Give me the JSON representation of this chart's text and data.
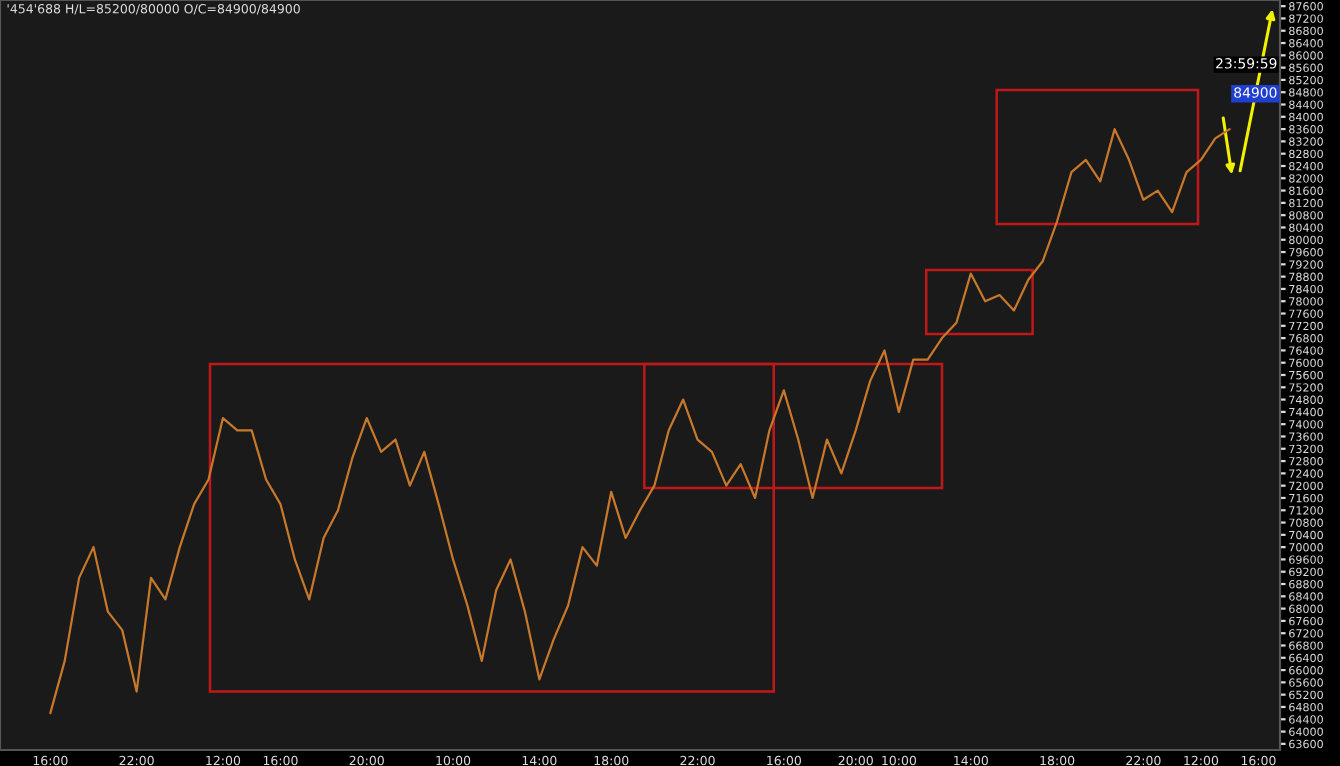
{
  "chart_data": {
    "type": "line",
    "title": "'454'688 H/L=85200/80000 O/C=84900/84900",
    "annotations": [
      "84900",
      "23:59:59"
    ],
    "categories": [
      "16:00",
      null,
      null,
      null,
      null,
      null,
      "22:00",
      null,
      null,
      null,
      null,
      null,
      "12:00",
      null,
      null,
      null,
      "16:00",
      null,
      null,
      null,
      null,
      null,
      "20:00",
      null,
      null,
      null,
      null,
      null,
      "10:00",
      null,
      null,
      null,
      null,
      null,
      "14:00",
      null,
      null,
      null,
      null,
      "18:00",
      null,
      null,
      null,
      null,
      null,
      "22:00",
      null,
      null,
      null,
      null,
      null,
      "16:00",
      null,
      null,
      null,
      null,
      "20:00",
      null,
      null,
      "10:00",
      null,
      null,
      null,
      null,
      "14:00",
      null,
      null,
      null,
      null,
      null,
      "18:00",
      null,
      null,
      null,
      null,
      null,
      "22:00",
      null,
      null,
      null,
      "12:00",
      null,
      null,
      null,
      "16:00",
      null
    ],
    "series": [
      {
        "color": "#c8782a",
        "values": [
          64600,
          66300,
          69000,
          70000,
          67900,
          67300,
          65300,
          69000,
          68300,
          70000,
          71400,
          72200,
          74200,
          73800,
          73800,
          72200,
          71400,
          69600,
          68300,
          70300,
          71200,
          72900,
          74200,
          73100,
          73500,
          72000,
          73100,
          71400,
          69600,
          68100,
          66300,
          68600,
          69600,
          67900,
          65700,
          67000,
          68100,
          70000,
          69400,
          71800,
          70300,
          71200,
          72000,
          73800,
          74800,
          73500,
          73100,
          72000,
          72700,
          71600,
          73800,
          75100,
          73500,
          71600,
          73500,
          72400,
          73800,
          75400,
          76400,
          74400,
          76100,
          76100,
          76800,
          77300,
          78900,
          78000,
          78200,
          77700,
          78700,
          79300,
          80600,
          82200,
          82600,
          81900,
          83600,
          82600,
          81300,
          81600,
          80900,
          82200,
          82600,
          83300,
          83600,
          null,
          null,
          null
        ]
      }
    ],
    "ylim": [
      63400,
      87800
    ],
    "yticks": [
      63600,
      64000,
      64400,
      64800,
      65200,
      65600,
      66000,
      66400,
      66800,
      67200,
      67600,
      68000,
      68400,
      68800,
      69200,
      69600,
      70000,
      70400,
      70800,
      71200,
      71600,
      72000,
      72400,
      72800,
      73200,
      73600,
      74000,
      74400,
      74800,
      75200,
      75600,
      76000,
      76400,
      76800,
      77200,
      77600,
      78000,
      78400,
      78800,
      79200,
      79600,
      80000,
      80400,
      80800,
      81200,
      81600,
      82000,
      82400,
      82800,
      83200,
      83600,
      84000,
      84400,
      84800,
      85200,
      85600,
      86000,
      86400,
      86800,
      87200,
      87600
    ],
    "grid": false,
    "legend": false,
    "marker": "none",
    "line_style": "solid"
  }
}
